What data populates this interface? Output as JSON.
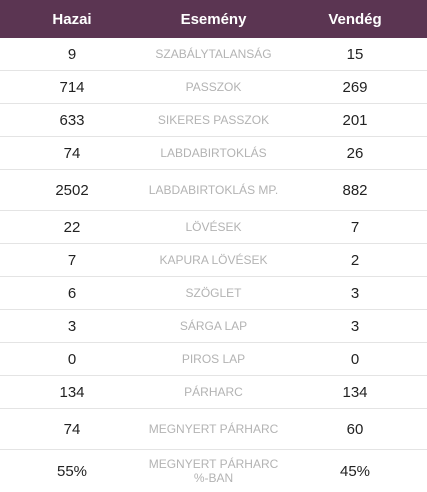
{
  "header": {
    "home": "Hazai",
    "event": "Esemény",
    "away": "Vendég"
  },
  "rows": [
    {
      "home": "9",
      "label": "SZABÁLYTALANSÁG",
      "away": "15"
    },
    {
      "home": "714",
      "label": "PASSZOK",
      "away": "269"
    },
    {
      "home": "633",
      "label": "SIKERES PASSZOK",
      "away": "201"
    },
    {
      "home": "74",
      "label": "LABDABIRTOKLÁS",
      "away": "26"
    },
    {
      "home": "2502",
      "label": "LABDABIRTOKLÁS MP.",
      "away": "882"
    },
    {
      "home": "22",
      "label": "LÖVÉSEK",
      "away": "7"
    },
    {
      "home": "7",
      "label": "KAPURA LÖVÉSEK",
      "away": "2"
    },
    {
      "home": "6",
      "label": "SZÖGLET",
      "away": "3"
    },
    {
      "home": "3",
      "label": "SÁRGA LAP",
      "away": "3"
    },
    {
      "home": "0",
      "label": "PIROS LAP",
      "away": "0"
    },
    {
      "home": "134",
      "label": "PÁRHARC",
      "away": "134"
    },
    {
      "home": "74",
      "label": "MEGNYERT PÁRHARC",
      "away": "60"
    },
    {
      "home": "55%",
      "label": "MEGNYERT PÁRHARC %-BAN",
      "away": "45%"
    }
  ],
  "colors": {
    "header_bg": "#5b3552",
    "label": "#b3b3b3",
    "divider": "#e4e4e4"
  }
}
